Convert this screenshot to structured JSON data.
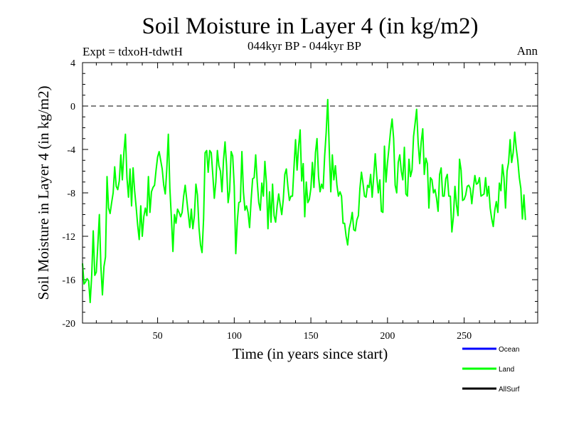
{
  "chart_data": {
    "type": "line",
    "title": "Soil Moisture in Layer 4 (in kg/m2)",
    "subtitle": "044kyr BP - 044kyr BP",
    "expt_label": "Expt = tdxoH-tdwtH",
    "period_label": "Ann",
    "xlabel": "Time (in years since start)",
    "ylabel": "Soil Moisture in Layer 4 (in kg/m2)",
    "xlim": [
      1,
      298
    ],
    "ylim": [
      -20,
      4
    ],
    "xticks": [
      50,
      100,
      150,
      200,
      250
    ],
    "yticks": [
      4,
      0,
      -4,
      -8,
      -12,
      -16,
      -20
    ],
    "reference_line": 0,
    "legend_position": "bottom-right",
    "series": [
      {
        "name": "Ocean",
        "color": "#0000ff",
        "values": []
      },
      {
        "name": "Land",
        "color": "#00ff00",
        "x_start": 1,
        "values": [
          -14.5,
          -16.4,
          -16.2,
          -15.9,
          -16.1,
          -18.1,
          -15.6,
          -11.5,
          -15.6,
          -15.3,
          -12.8,
          -10.0,
          -14.8,
          -17.4,
          -14.8,
          -13.9,
          -6.5,
          -9.4,
          -9.9,
          -8.9,
          -8.0,
          -5.6,
          -7.4,
          -7.7,
          -6.9,
          -4.5,
          -6.8,
          -4.3,
          -2.6,
          -6.6,
          -8.4,
          -5.8,
          -9.2,
          -5.7,
          -7.8,
          -9.3,
          -11.0,
          -12.3,
          -9.2,
          -12.0,
          -10.2,
          -9.4,
          -10.1,
          -6.5,
          -9.8,
          -7.9,
          -7.5,
          -7.3,
          -5.9,
          -4.7,
          -4.2,
          -5.0,
          -5.8,
          -7.3,
          -8.1,
          -5.8,
          -2.6,
          -7.6,
          -10.3,
          -13.4,
          -10.0,
          -10.8,
          -9.5,
          -9.8,
          -10.2,
          -9.8,
          -8.3,
          -7.3,
          -8.6,
          -9.9,
          -11.2,
          -9.5,
          -11.3,
          -10.1,
          -7.2,
          -8.2,
          -11.2,
          -12.8,
          -13.5,
          -10.4,
          -4.3,
          -4.1,
          -6.1,
          -4.1,
          -4.3,
          -6.3,
          -8.5,
          -7.0,
          -4.1,
          -5.5,
          -6.0,
          -7.9,
          -5.0,
          -3.3,
          -5.5,
          -8.9,
          -7.8,
          -4.2,
          -4.6,
          -7.4,
          -13.6,
          -10.6,
          -8.9,
          -8.8,
          -4.2,
          -7.9,
          -9.6,
          -9.2,
          -9.8,
          -11.2,
          -8.7,
          -6.7,
          -6.6,
          -4.5,
          -7.0,
          -8.9,
          -9.6,
          -7.1,
          -8.3,
          -5.1,
          -7.1,
          -11.3,
          -7.9,
          -10.7,
          -7.2,
          -10.1,
          -10.7,
          -9.2,
          -8.1,
          -9.1,
          -10.0,
          -8.6,
          -6.3,
          -5.8,
          -7.4,
          -8.7,
          -8.3,
          -8.3,
          -5.6,
          -3.1,
          -5.9,
          -3.7,
          -2.2,
          -6.9,
          -5.3,
          -10.2,
          -7.0,
          -8.9,
          -8.6,
          -7.6,
          -5.2,
          -7.5,
          -4.3,
          -3.0,
          -6.5,
          -7.9,
          -7.2,
          -7.6,
          -4.6,
          -2.4,
          0.6,
          -4.0,
          -7.9,
          -4.5,
          -6.8,
          -5.5,
          -7.3,
          -8.3,
          -7.9,
          -8.3,
          -10.8,
          -10.8,
          -12.0,
          -12.8,
          -11.3,
          -10.7,
          -9.8,
          -11.4,
          -11.5,
          -10.5,
          -10.1,
          -7.6,
          -6.1,
          -7.1,
          -8.3,
          -8.4,
          -7.3,
          -7.5,
          -6.3,
          -8.4,
          -6.5,
          -4.4,
          -6.5,
          -8.0,
          -6.8,
          -9.7,
          -9.8,
          -3.7,
          -7.0,
          -5.2,
          -3.8,
          -2.3,
          -1.2,
          -3.0,
          -7.3,
          -8.0,
          -5.2,
          -4.5,
          -6.0,
          -6.8,
          -3.8,
          -8.1,
          -8.3,
          -4.9,
          -6.5,
          -5.9,
          -2.8,
          -1.6,
          -0.3,
          -3.4,
          -5.3,
          -3.3,
          -2.1,
          -6.3,
          -4.8,
          -5.3,
          -9.4,
          -6.6,
          -6.8,
          -8.0,
          -7.7,
          -8.5,
          -9.7,
          -6.3,
          -5.7,
          -8.3,
          -8.3,
          -6.7,
          -6.3,
          -8.3,
          -8.3,
          -11.6,
          -10.2,
          -7.4,
          -9.1,
          -10.1,
          -4.9,
          -5.9,
          -8.7,
          -8.6,
          -8.2,
          -7.4,
          -7.3,
          -7.6,
          -9.0,
          -7.6,
          -6.4,
          -7.2,
          -7.1,
          -6.6,
          -8.3,
          -8.2,
          -8.1,
          -6.6,
          -8.3,
          -7.4,
          -9.4,
          -10.4,
          -11.1,
          -9.6,
          -8.8,
          -9.8,
          -7.1,
          -7.8,
          -5.4,
          -6.6,
          -9.4,
          -6.0,
          -5.2,
          -3.1,
          -5.2,
          -4.3,
          -2.4,
          -3.9,
          -5.0,
          -6.6,
          -7.6,
          -10.4,
          -8.2,
          -10.5
        ]
      },
      {
        "name": "AllSurf",
        "color": "#000000",
        "values": []
      }
    ]
  }
}
